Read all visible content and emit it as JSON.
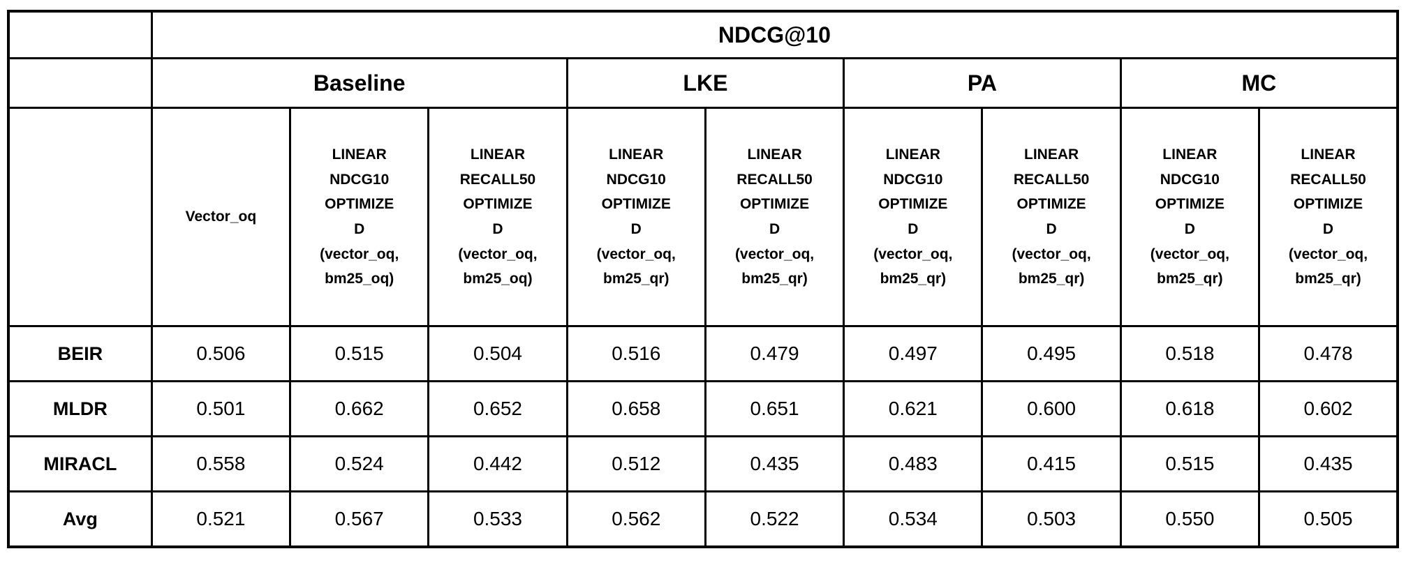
{
  "chart_data": {
    "type": "table",
    "title": "NDCG@10",
    "groups": [
      {
        "label": "Baseline",
        "span": 3
      },
      {
        "label": "LKE",
        "span": 2
      },
      {
        "label": "PA",
        "span": 2
      },
      {
        "label": "MC",
        "span": 2
      }
    ],
    "columns": [
      "Vector_oq",
      "LINEAR\nNDCG10\nOPTIMIZE\nD\n(vector_oq,\nbm25_oq)",
      "LINEAR\nRECALL50\nOPTIMIZE\nD\n(vector_oq,\nbm25_oq)",
      "LINEAR\nNDCG10\nOPTIMIZE\nD\n(vector_oq,\nbm25_qr)",
      "LINEAR\nRECALL50\nOPTIMIZE\nD\n(vector_oq,\nbm25_qr)",
      "LINEAR\nNDCG10\nOPTIMIZE\nD\n(vector_oq,\nbm25_qr)",
      "LINEAR\nRECALL50\nOPTIMIZE\nD\n(vector_oq,\nbm25_qr)",
      "LINEAR\nNDCG10\nOPTIMIZE\nD\n(vector_oq,\nbm25_qr)",
      "LINEAR\nRECALL50\nOPTIMIZE\nD\n(vector_oq,\nbm25_qr)"
    ],
    "rows": [
      {
        "label": "BEIR",
        "values": [
          "0.506",
          "0.515",
          "0.504",
          "0.516",
          "0.479",
          "0.497",
          "0.495",
          "0.518",
          "0.478"
        ],
        "bold_col": 7
      },
      {
        "label": "MLDR",
        "values": [
          "0.501",
          "0.662",
          "0.652",
          "0.658",
          "0.651",
          "0.621",
          "0.600",
          "0.618",
          "0.602"
        ],
        "bold_col": 1
      },
      {
        "label": "MIRACL",
        "values": [
          "0.558",
          "0.524",
          "0.442",
          "0.512",
          "0.435",
          "0.483",
          "0.415",
          "0.515",
          "0.435"
        ],
        "bold_col": 0
      },
      {
        "label": "Avg",
        "values": [
          "0.521",
          "0.567",
          "0.533",
          "0.562",
          "0.522",
          "0.534",
          "0.503",
          "0.550",
          "0.505"
        ],
        "bold_col": 1
      }
    ],
    "colors": {
      "border": "#000000",
      "text": "#000000",
      "background": "#ffffff"
    }
  }
}
